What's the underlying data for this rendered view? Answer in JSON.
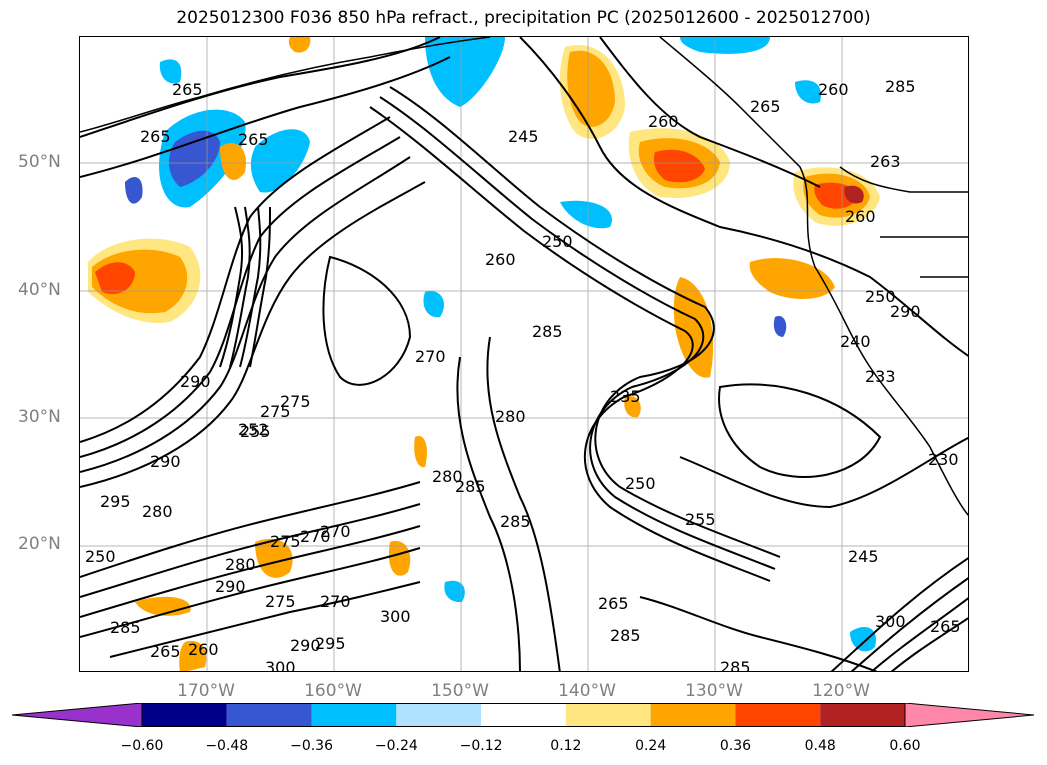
{
  "title": "2025012300 F036 850 hPa refract., precipitation PC (2025012600 - 2025012700)",
  "lat_labels": [
    "50°N",
    "40°N",
    "30°N",
    "20°N"
  ],
  "lon_labels": [
    "170°W",
    "160°W",
    "150°W",
    "140°W",
    "130°W",
    "120°W"
  ],
  "colorbar": {
    "ticks": [
      "−0.60",
      "−0.48",
      "−0.36",
      "−0.24",
      "−0.12",
      "0.12",
      "0.24",
      "0.36",
      "0.48",
      "0.60"
    ],
    "colors": [
      "#9932cc",
      "#00008b",
      "#3657d1",
      "#00bfff",
      "#b0e2ff",
      "#ffffff",
      "#ffe680",
      "#ffa500",
      "#ff4500",
      "#b22222",
      "#ff88aa"
    ]
  },
  "contour_labels": [
    "265",
    "265",
    "265",
    "245",
    "260",
    "265",
    "260",
    "263",
    "260",
    "250",
    "260",
    "285",
    "270",
    "285",
    "250",
    "240",
    "233",
    "255",
    "235",
    "280",
    "280",
    "285",
    "290",
    "295",
    "280",
    "290",
    "275",
    "270",
    "280",
    "300",
    "285",
    "265",
    "260",
    "290",
    "285",
    "250",
    "255",
    "275",
    "245",
    "230",
    "290",
    "300",
    "285",
    "285",
    "275",
    "270",
    "300",
    "265",
    "252",
    "275",
    "250",
    "270",
    "265",
    "290",
    "295"
  ]
}
